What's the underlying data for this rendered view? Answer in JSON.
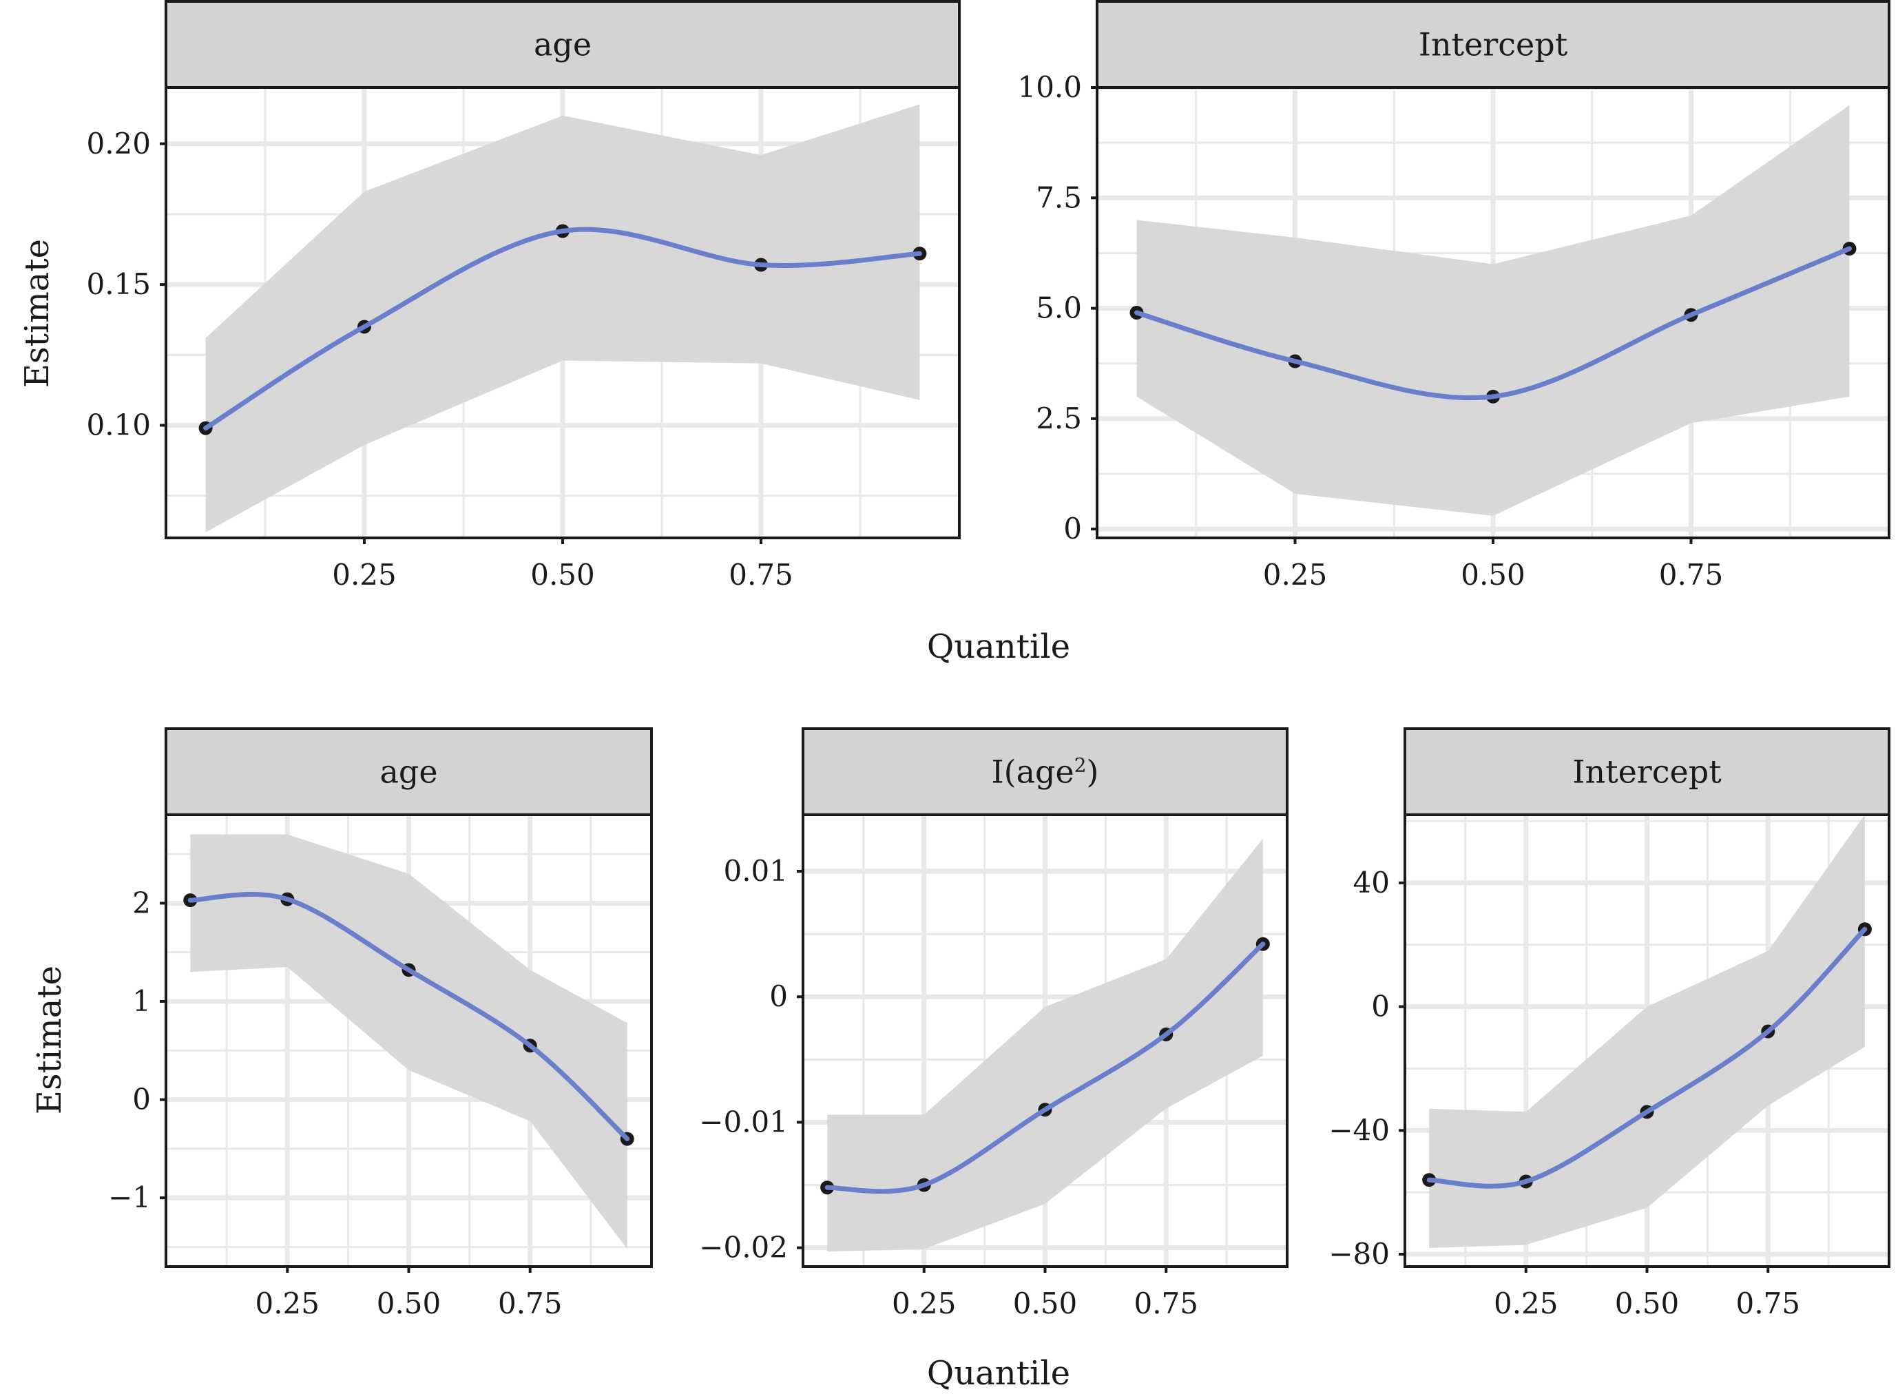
{
  "figure": {
    "rows": [
      {
        "y_label": "Estimate",
        "x_label": "Quantile"
      },
      {
        "y_label": "Estimate",
        "x_label": "Quantile"
      }
    ],
    "colors": {
      "line": "#6a7fcc",
      "ribbon": "#d6d6d6",
      "strip": "#d3d3d3",
      "point": "#1a1a1a",
      "grid": "#e8e8e8"
    }
  },
  "chart_data": [
    {
      "type": "line",
      "strip_label": "age",
      "x": [
        0.05,
        0.25,
        0.5,
        0.75,
        0.95
      ],
      "y": [
        0.099,
        0.135,
        0.169,
        0.157,
        0.161
      ],
      "lower": [
        0.062,
        0.093,
        0.123,
        0.122,
        0.109
      ],
      "upper": [
        0.131,
        0.183,
        0.21,
        0.196,
        0.214
      ],
      "xlim": [
        0.0,
        1.0
      ],
      "ylim": [
        0.06,
        0.22
      ],
      "x_ticks": [
        0.25,
        0.5,
        0.75
      ],
      "x_tick_labels": [
        "0.25",
        "0.50",
        "0.75"
      ],
      "y_ticks": [
        0.1,
        0.15,
        0.2
      ],
      "y_tick_labels": [
        "0.10",
        "0.15",
        "0.20"
      ],
      "grid": true
    },
    {
      "type": "line",
      "strip_label": "Intercept",
      "x": [
        0.05,
        0.25,
        0.5,
        0.75,
        0.95
      ],
      "y": [
        4.9,
        3.8,
        3.0,
        4.85,
        6.35
      ],
      "lower": [
        3.0,
        0.8,
        0.3,
        2.4,
        3.0
      ],
      "upper": [
        7.0,
        6.6,
        6.0,
        7.1,
        9.6
      ],
      "xlim": [
        0.0,
        1.0
      ],
      "ylim": [
        -0.2,
        10.0
      ],
      "x_ticks": [
        0.25,
        0.5,
        0.75
      ],
      "x_tick_labels": [
        "0.25",
        "0.50",
        "0.75"
      ],
      "y_ticks": [
        0,
        2.5,
        5.0,
        7.5,
        10.0
      ],
      "y_tick_labels": [
        "0",
        "2.5",
        "5.0",
        "7.5",
        "10.0"
      ],
      "grid": true
    },
    {
      "type": "line",
      "strip_label": "age",
      "x": [
        0.05,
        0.25,
        0.5,
        0.75,
        0.95
      ],
      "y": [
        2.03,
        2.04,
        1.32,
        0.55,
        -0.4
      ],
      "lower": [
        1.3,
        1.35,
        0.3,
        -0.22,
        -1.52
      ],
      "upper": [
        2.7,
        2.7,
        2.3,
        1.32,
        0.78
      ],
      "xlim": [
        0.0,
        1.0
      ],
      "ylim": [
        -1.7,
        2.9
      ],
      "x_ticks": [
        0.25,
        0.5,
        0.75
      ],
      "x_tick_labels": [
        "0.25",
        "0.50",
        "0.75"
      ],
      "y_ticks": [
        -1,
        0,
        1,
        2
      ],
      "y_tick_labels": [
        "−1",
        "0",
        "1",
        "2"
      ],
      "grid": true
    },
    {
      "type": "line",
      "strip_label_base": "I(age",
      "strip_label_sup": "2",
      "strip_label_end": ")",
      "x": [
        0.05,
        0.25,
        0.5,
        0.75,
        0.95
      ],
      "y": [
        -0.0152,
        -0.015,
        -0.009,
        -0.003,
        0.0042
      ],
      "lower": [
        -0.0203,
        -0.0201,
        -0.0165,
        -0.0089,
        -0.0047
      ],
      "upper": [
        -0.0094,
        -0.0094,
        -0.0008,
        0.003,
        0.0126
      ],
      "xlim": [
        0.0,
        1.0
      ],
      "ylim": [
        -0.0215,
        0.0145
      ],
      "x_ticks": [
        0.25,
        0.5,
        0.75
      ],
      "x_tick_labels": [
        "0.25",
        "0.50",
        "0.75"
      ],
      "y_ticks": [
        -0.02,
        -0.01,
        0,
        0.01
      ],
      "y_tick_labels": [
        "−0.02",
        "−0.01",
        "0",
        "0.01"
      ],
      "grid": true
    },
    {
      "type": "line",
      "strip_label": "Intercept",
      "x": [
        0.05,
        0.25,
        0.5,
        0.75,
        0.95
      ],
      "y": [
        -56,
        -56.5,
        -34,
        -8,
        25
      ],
      "lower": [
        -78,
        -77,
        -65,
        -32,
        -13
      ],
      "upper": [
        -33,
        -34,
        0,
        18,
        62
      ],
      "xlim": [
        0.0,
        1.0
      ],
      "ylim": [
        -84,
        62
      ],
      "x_ticks": [
        0.25,
        0.5,
        0.75
      ],
      "x_tick_labels": [
        "0.25",
        "0.50",
        "0.75"
      ],
      "y_ticks": [
        -80,
        -40,
        0,
        40
      ],
      "y_tick_labels": [
        "−80",
        "−40",
        "0",
        "40"
      ],
      "grid": true
    }
  ]
}
